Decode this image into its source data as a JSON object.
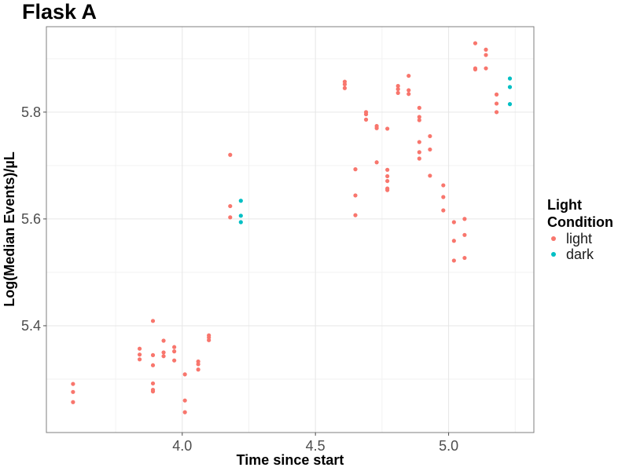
{
  "chart_data": {
    "type": "scatter",
    "title": "Flask A",
    "xlabel": "Time since start",
    "ylabel": "Log(Median Events)/µL",
    "xlim": [
      3.49,
      5.32
    ],
    "ylim": [
      5.2,
      5.96
    ],
    "x_ticks": [
      4.0,
      4.5,
      5.0
    ],
    "x_tick_labels": [
      "4.0",
      "4.5",
      "5.0"
    ],
    "y_ticks": [
      5.4,
      5.6,
      5.8
    ],
    "y_tick_labels": [
      "5.4",
      "5.6",
      "5.8"
    ],
    "grid": true,
    "legend": {
      "title": "Light Condition",
      "placement": "right",
      "entries": [
        {
          "label": "light",
          "color": "#F8766D"
        },
        {
          "label": "dark",
          "color": "#00BFC4"
        }
      ]
    },
    "series": [
      {
        "name": "light",
        "color": "#F8766D",
        "points": [
          [
            3.59,
            5.291
          ],
          [
            3.59,
            5.276
          ],
          [
            3.59,
            5.257
          ],
          [
            3.84,
            5.357
          ],
          [
            3.84,
            5.346
          ],
          [
            3.84,
            5.337
          ],
          [
            3.89,
            5.409
          ],
          [
            3.89,
            5.345
          ],
          [
            3.89,
            5.326
          ],
          [
            3.89,
            5.292
          ],
          [
            3.89,
            5.28
          ],
          [
            3.89,
            5.277
          ],
          [
            3.93,
            5.372
          ],
          [
            3.93,
            5.35
          ],
          [
            3.93,
            5.343
          ],
          [
            3.97,
            5.36
          ],
          [
            3.97,
            5.352
          ],
          [
            3.97,
            5.335
          ],
          [
            4.01,
            5.309
          ],
          [
            4.01,
            5.26
          ],
          [
            4.01,
            5.238
          ],
          [
            4.06,
            5.333
          ],
          [
            4.06,
            5.328
          ],
          [
            4.06,
            5.318
          ],
          [
            4.1,
            5.382
          ],
          [
            4.1,
            5.378
          ],
          [
            4.1,
            5.373
          ],
          [
            4.18,
            5.72
          ],
          [
            4.18,
            5.624
          ],
          [
            4.18,
            5.603
          ],
          [
            4.61,
            5.857
          ],
          [
            4.61,
            5.852
          ],
          [
            4.61,
            5.845
          ],
          [
            4.65,
            5.693
          ],
          [
            4.65,
            5.644
          ],
          [
            4.65,
            5.607
          ],
          [
            4.69,
            5.8
          ],
          [
            4.69,
            5.796
          ],
          [
            4.69,
            5.786
          ],
          [
            4.73,
            5.774
          ],
          [
            4.73,
            5.77
          ],
          [
            4.73,
            5.706
          ],
          [
            4.77,
            5.769
          ],
          [
            4.77,
            5.692
          ],
          [
            4.77,
            5.68
          ],
          [
            4.77,
            5.671
          ],
          [
            4.77,
            5.657
          ],
          [
            4.77,
            5.654
          ],
          [
            4.81,
            5.849
          ],
          [
            4.81,
            5.843
          ],
          [
            4.81,
            5.836
          ],
          [
            4.85,
            5.868
          ],
          [
            4.85,
            5.841
          ],
          [
            4.85,
            5.834
          ],
          [
            4.89,
            5.808
          ],
          [
            4.89,
            5.791
          ],
          [
            4.89,
            5.785
          ],
          [
            4.89,
            5.744
          ],
          [
            4.89,
            5.725
          ],
          [
            4.89,
            5.713
          ],
          [
            4.93,
            5.755
          ],
          [
            4.93,
            5.73
          ],
          [
            4.93,
            5.681
          ],
          [
            4.98,
            5.663
          ],
          [
            4.98,
            5.641
          ],
          [
            4.98,
            5.616
          ],
          [
            5.02,
            5.594
          ],
          [
            5.02,
            5.559
          ],
          [
            5.02,
            5.522
          ],
          [
            5.06,
            5.6
          ],
          [
            5.06,
            5.57
          ],
          [
            5.06,
            5.527
          ],
          [
            5.1,
            5.929
          ],
          [
            5.1,
            5.882
          ],
          [
            5.1,
            5.88
          ],
          [
            5.14,
            5.917
          ],
          [
            5.14,
            5.907
          ],
          [
            5.14,
            5.882
          ],
          [
            5.18,
            5.833
          ],
          [
            5.18,
            5.816
          ],
          [
            5.18,
            5.8
          ]
        ]
      },
      {
        "name": "dark",
        "color": "#00BFC4",
        "points": [
          [
            4.22,
            5.634
          ],
          [
            4.22,
            5.606
          ],
          [
            4.22,
            5.594
          ],
          [
            5.23,
            5.863
          ],
          [
            5.23,
            5.847
          ],
          [
            5.23,
            5.815
          ]
        ]
      }
    ]
  }
}
